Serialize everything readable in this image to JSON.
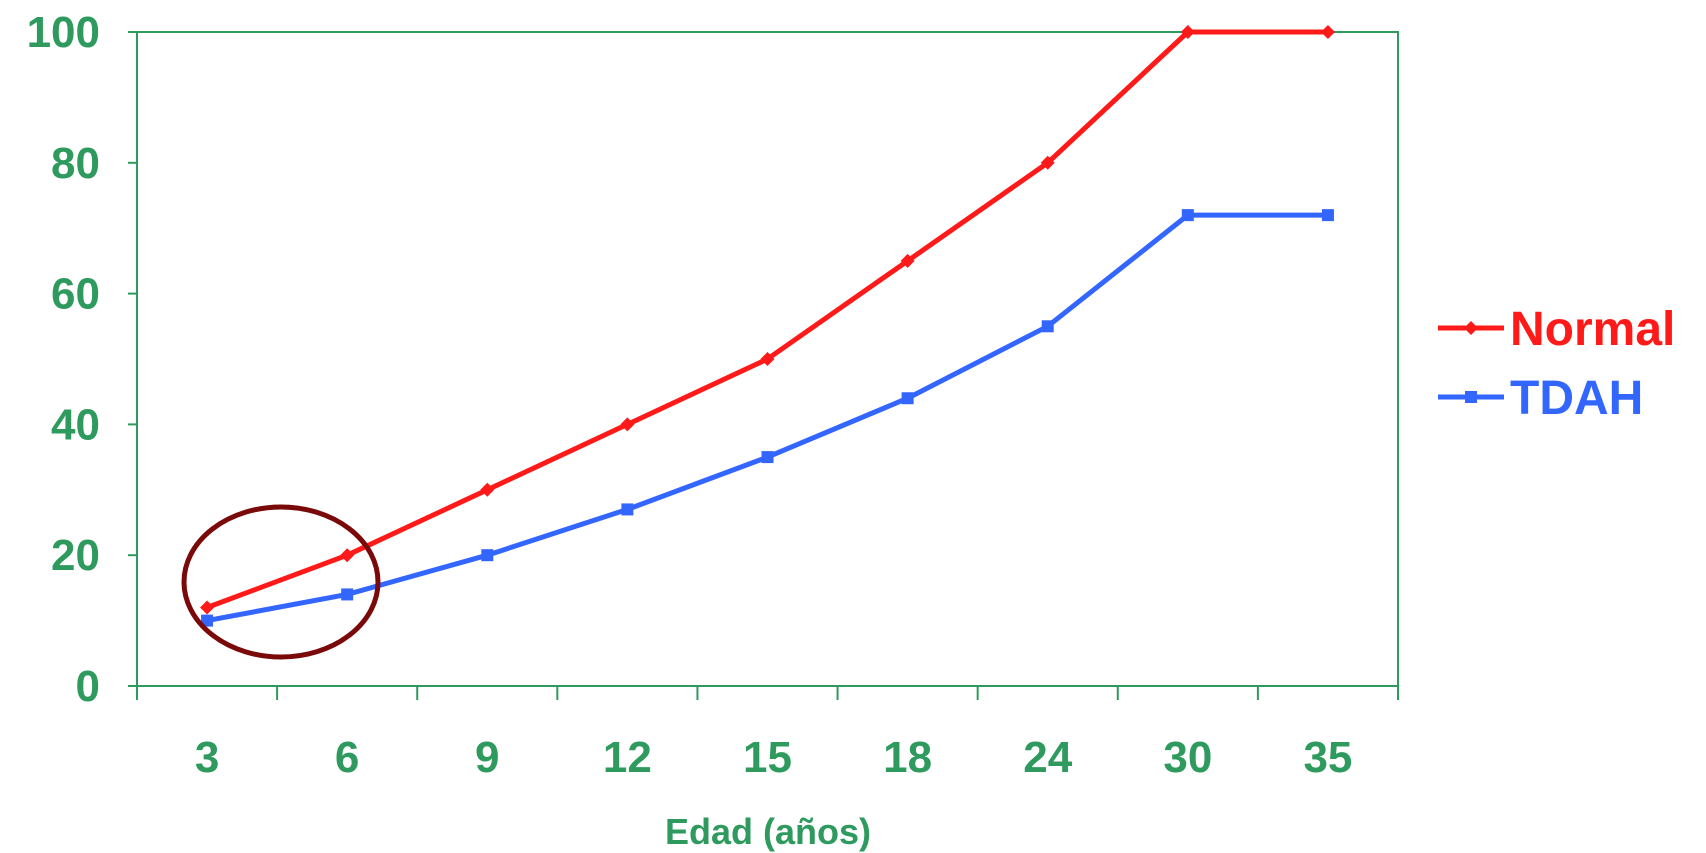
{
  "chart_data": {
    "type": "line",
    "categories": [
      "3",
      "6",
      "9",
      "12",
      "15",
      "18",
      "24",
      "30",
      "35"
    ],
    "series": [
      {
        "name": "Normal",
        "values": [
          12,
          20,
          30,
          40,
          50,
          65,
          80,
          100,
          100
        ],
        "color": "#ff1a1a",
        "marker": "diamond"
      },
      {
        "name": "TDAH",
        "values": [
          10,
          14,
          20,
          27,
          35,
          44,
          55,
          72,
          72
        ],
        "color": "#3366ff",
        "marker": "square"
      }
    ],
    "xlabel": "Edad (años)",
    "ylabel": "",
    "ylim": [
      0,
      100
    ],
    "yticks": [
      "0",
      "20",
      "40",
      "60",
      "80",
      "100"
    ],
    "grid": false,
    "legend_position": "right",
    "axis_color": "#2e9a5e",
    "annotation": {
      "type": "ellipse",
      "around_categories": [
        "3",
        "6"
      ],
      "color": "#7a0a0a"
    }
  }
}
